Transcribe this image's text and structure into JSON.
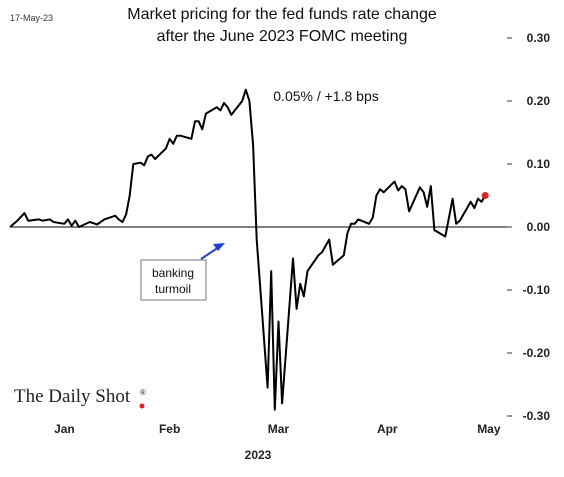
{
  "header": {
    "date_stamp": "17-May-23"
  },
  "branding": {
    "name": "The Daily Shot",
    "mark": "®",
    "dot_color": "#e02020"
  },
  "chart_data": {
    "type": "line",
    "title": [
      "Market pricing for the fed funds rate change",
      "after the June 2023 FOMC meeting"
    ],
    "xlabel": "2023",
    "ylabel": "",
    "ylim": [
      -0.3,
      0.3
    ],
    "yticks": [
      0.3,
      0.2,
      0.1,
      0.0,
      -0.1,
      -0.2,
      -0.3
    ],
    "ytick_labels": [
      "0.30",
      "0.20",
      "0.10",
      "0.00",
      "-0.10",
      "-0.20",
      "-0.30"
    ],
    "xlim": [
      "2023-01-01",
      "2023-05-18"
    ],
    "month_ticks": [
      {
        "label": "Jan",
        "date": "2023-01-16"
      },
      {
        "label": "Feb",
        "date": "2023-02-14"
      },
      {
        "label": "Mar",
        "date": "2023-03-16"
      },
      {
        "label": "Apr",
        "date": "2023-04-15"
      },
      {
        "label": "May",
        "date": "2023-05-13"
      }
    ],
    "zero_line": true,
    "grid": false,
    "line_color": "#000000",
    "last_point_color": "#e02020",
    "series": [
      {
        "points": [
          [
            "2023-01-01",
            0.0
          ],
          [
            "2023-01-03",
            0.01
          ],
          [
            "2023-01-05",
            0.022
          ],
          [
            "2023-01-06",
            0.01
          ],
          [
            "2023-01-09",
            0.012
          ],
          [
            "2023-01-10",
            0.01
          ],
          [
            "2023-01-12",
            0.012
          ],
          [
            "2023-01-13",
            0.008
          ],
          [
            "2023-01-16",
            0.005
          ],
          [
            "2023-01-17",
            0.012
          ],
          [
            "2023-01-18",
            0.002
          ],
          [
            "2023-01-19",
            0.01
          ],
          [
            "2023-01-20",
            0.0
          ],
          [
            "2023-01-23",
            0.008
          ],
          [
            "2023-01-24",
            0.006
          ],
          [
            "2023-01-25",
            0.004
          ],
          [
            "2023-01-27",
            0.012
          ],
          [
            "2023-01-30",
            0.018
          ],
          [
            "2023-01-31",
            0.012
          ],
          [
            "2023-02-01",
            0.008
          ],
          [
            "2023-02-02",
            0.02
          ],
          [
            "2023-02-03",
            0.05
          ],
          [
            "2023-02-04",
            0.1
          ],
          [
            "2023-02-06",
            0.102
          ],
          [
            "2023-02-07",
            0.098
          ],
          [
            "2023-02-08",
            0.112
          ],
          [
            "2023-02-09",
            0.115
          ],
          [
            "2023-02-10",
            0.108
          ],
          [
            "2023-02-13",
            0.125
          ],
          [
            "2023-02-14",
            0.14
          ],
          [
            "2023-02-15",
            0.132
          ],
          [
            "2023-02-16",
            0.145
          ],
          [
            "2023-02-17",
            0.145
          ],
          [
            "2023-02-20",
            0.14
          ],
          [
            "2023-02-21",
            0.168
          ],
          [
            "2023-02-22",
            0.168
          ],
          [
            "2023-02-23",
            0.155
          ],
          [
            "2023-02-24",
            0.18
          ],
          [
            "2023-02-27",
            0.19
          ],
          [
            "2023-02-28",
            0.185
          ],
          [
            "2023-03-01",
            0.197
          ],
          [
            "2023-03-02",
            0.19
          ],
          [
            "2023-03-03",
            0.178
          ],
          [
            "2023-03-06",
            0.2
          ],
          [
            "2023-03-07",
            0.218
          ],
          [
            "2023-03-08",
            0.2
          ],
          [
            "2023-03-09",
            0.13
          ],
          [
            "2023-03-10",
            -0.02
          ],
          [
            "2023-03-13",
            -0.255
          ],
          [
            "2023-03-14",
            -0.07
          ],
          [
            "2023-03-15",
            -0.29
          ],
          [
            "2023-03-16",
            -0.15
          ],
          [
            "2023-03-17",
            -0.28
          ],
          [
            "2023-03-20",
            -0.05
          ],
          [
            "2023-03-21",
            -0.13
          ],
          [
            "2023-03-22",
            -0.09
          ],
          [
            "2023-03-23",
            -0.11
          ],
          [
            "2023-03-24",
            -0.07
          ],
          [
            "2023-03-27",
            -0.045
          ],
          [
            "2023-03-28",
            -0.04
          ],
          [
            "2023-03-29",
            -0.03
          ],
          [
            "2023-03-30",
            -0.02
          ],
          [
            "2023-03-31",
            -0.06
          ],
          [
            "2023-04-03",
            -0.045
          ],
          [
            "2023-04-04",
            -0.01
          ],
          [
            "2023-04-05",
            0.005
          ],
          [
            "2023-04-06",
            0.005
          ],
          [
            "2023-04-07",
            0.012
          ],
          [
            "2023-04-10",
            0.005
          ],
          [
            "2023-04-11",
            0.015
          ],
          [
            "2023-04-12",
            0.05
          ],
          [
            "2023-04-13",
            0.06
          ],
          [
            "2023-04-14",
            0.055
          ],
          [
            "2023-04-17",
            0.072
          ],
          [
            "2023-04-18",
            0.058
          ],
          [
            "2023-04-19",
            0.065
          ],
          [
            "2023-04-20",
            0.06
          ],
          [
            "2023-04-21",
            0.025
          ],
          [
            "2023-04-24",
            0.063
          ],
          [
            "2023-04-25",
            0.055
          ],
          [
            "2023-04-26",
            0.032
          ],
          [
            "2023-04-27",
            0.065
          ],
          [
            "2023-04-28",
            -0.005
          ],
          [
            "2023-05-01",
            -0.015
          ],
          [
            "2023-05-02",
            0.015
          ],
          [
            "2023-05-03",
            0.045
          ],
          [
            "2023-05-04",
            0.005
          ],
          [
            "2023-05-05",
            0.01
          ],
          [
            "2023-05-08",
            0.04
          ],
          [
            "2023-05-09",
            0.03
          ],
          [
            "2023-05-10",
            0.045
          ],
          [
            "2023-05-11",
            0.04
          ],
          [
            "2023-05-12",
            0.05
          ]
        ]
      }
    ],
    "annotations": {
      "latest": "0.05%  /  +1.8 bps",
      "callout": [
        "banking",
        "turmoil"
      ],
      "arrow_color": "#1f3fd6"
    }
  }
}
